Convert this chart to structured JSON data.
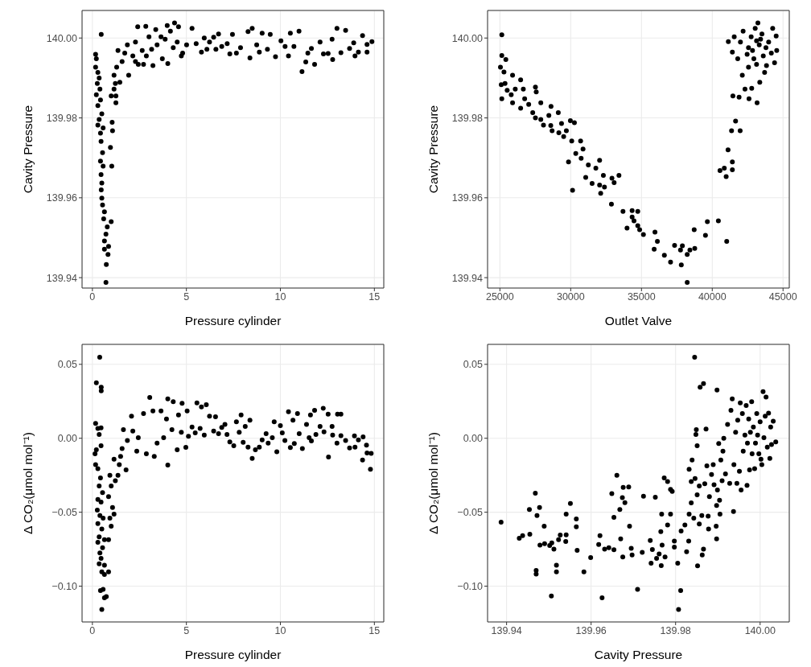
{
  "chart_data": [
    {
      "type": "scatter",
      "xlabel": "Pressure cylinder",
      "ylabel": "Cavity Pressure",
      "color": "#000000",
      "marker": "circle",
      "grid": true,
      "xlim": [
        -0.55,
        15.5
      ],
      "xticks": [
        0,
        5,
        10,
        15
      ],
      "ylim": [
        139.9374,
        140.0069
      ],
      "yticks": [
        139.94,
        139.96,
        139.98,
        {
          "value": 140,
          "label": "140.00"
        }
      ],
      "x": [
        0.17,
        0.21,
        0.17,
        0.29,
        0.36,
        0.26,
        0.4,
        0.21,
        0.43,
        0.29,
        0.5,
        0.36,
        0.29,
        0.57,
        0.43,
        0.46,
        0.54,
        0.43,
        0.57,
        0.46,
        0.5,
        0.47,
        0.5,
        0.54,
        0.64,
        0.6,
        0.79,
        0.72,
        0.64,
        0.86,
        0.64,
        0.83,
        0.74,
        0.72,
        0.47,
        1.0,
        1.03,
        0.96,
        1.05,
        1.07,
        1.0,
        1.25,
        1.25,
        1.15,
        1.22,
        1.15,
        1.46,
        1.29,
        1.58,
        1.36,
        1.72,
        1.93,
        1.86,
        2.15,
        2.29,
        2.41,
        2.44,
        2.65,
        2.84,
        3.01,
        2.87,
        3.22,
        3.37,
        3.44,
        3.72,
        3.87,
        4.01,
        3.98,
        4.15,
        4.37,
        4.51,
        4.58,
        4.73,
        4.8,
        3.15,
        2.72,
        3.65,
        4.3,
        2.29,
        5.01,
        5.3,
        5.52,
        5.8,
        5.95,
        6.09,
        6.23,
        6.45,
        6.57,
        6.71,
        6.88,
        7.17,
        7.31,
        7.45,
        7.66,
        7.88,
        8.28,
        8.38,
        8.5,
        8.74,
        8.88,
        9.03,
        9.31,
        9.46,
        9.74,
        10.03,
        10.25,
        10.43,
        10.53,
        10.72,
        10.99,
        11.15,
        11.35,
        11.46,
        11.65,
        11.82,
        12.11,
        12.29,
        12.54,
        12.78,
        12.75,
        13.01,
        13.22,
        13.47,
        13.68,
        13.9,
        13.97,
        14.15,
        14.37,
        14.61,
        14.61,
        14.87
      ],
      "values": [
        139.9959,
        139.9948,
        139.9927,
        139.9914,
        139.99,
        139.9886,
        139.9872,
        139.9858,
        139.9845,
        139.9831,
        139.981,
        139.9796,
        139.9782,
        139.9775,
        139.9762,
        139.9741,
        139.9713,
        139.9692,
        139.9679,
        139.9658,
        139.9637,
        139.962,
        139.9599,
        139.9582,
        139.9565,
        139.9547,
        139.9527,
        139.9509,
        139.9492,
        139.9478,
        139.9471,
        139.9458,
        139.9433,
        139.9388,
        140.0009,
        139.954,
        139.9679,
        139.9726,
        139.9789,
        139.9768,
        139.9855,
        139.9838,
        139.9855,
        139.9872,
        139.9886,
        139.9907,
        139.9889,
        139.9927,
        139.9941,
        139.9969,
        139.9962,
        139.9907,
        139.9983,
        139.9955,
        139.999,
        140.0028,
        139.9934,
        139.9969,
        140.0029,
        140.0003,
        139.9955,
        139.9931,
        140.0021,
        139.9983,
        139.9948,
        139.9997,
        139.9936,
        140.0031,
        140.0017,
        140.0038,
        139.999,
        140.0028,
        139.9955,
        139.9962,
        139.9972,
        139.9934,
        140.0003,
        139.9976,
        139.9941,
        139.9983,
        140.0024,
        139.9986,
        139.9965,
        140.0,
        139.9972,
        139.999,
        140.0002,
        139.9972,
        140.001,
        139.9979,
        139.9986,
        139.996,
        140.0009,
        139.9962,
        139.9976,
        140.0016,
        139.995,
        140.0024,
        139.9983,
        139.9965,
        140.0012,
        139.9972,
        140.0009,
        139.9953,
        139.9993,
        139.9979,
        139.9955,
        140.0012,
        139.9979,
        140.0017,
        139.9916,
        139.994,
        139.9962,
        139.9974,
        139.9934,
        139.999,
        139.996,
        139.9961,
        139.9946,
        139.9997,
        140.0024,
        139.9963,
        140.0019,
        139.9974,
        139.9988,
        139.9955,
        139.9965,
        140.0006,
        139.9965,
        139.9984,
        139.9991
      ]
    },
    {
      "type": "scatter",
      "xlabel": "Outlet Valve",
      "ylabel": "Cavity Pressure",
      "color": "#000000",
      "marker": "circle",
      "grid": true,
      "xlim": [
        24127,
        45441
      ],
      "xticks": [
        25000,
        30000,
        35000,
        40000,
        45000
      ],
      "ylim": [
        139.9374,
        140.0069
      ],
      "yticks": [
        139.94,
        139.96,
        139.98,
        {
          "value": 140,
          "label": "140.00"
        }
      ],
      "x": [
        25133,
        25133,
        25418,
        25038,
        25285,
        25095,
        25361,
        25133,
        25513,
        25893,
        25798,
        26083,
        25893,
        26463,
        26653,
        26463,
        26748,
        27033,
        27508,
        27565,
        27318,
        27508,
        27888,
        27888,
        28078,
        28458,
        28610,
        28591,
        28686,
        29123,
        29161,
        29351,
        29503,
        29693,
        29845,
        29978,
        30073,
        30130,
        30263,
        30358,
        30700,
        30738,
        30871,
        31061,
        31245,
        31511,
        31776,
        32042,
        32042,
        32118,
        32308,
        32384,
        32877,
        32915,
        33067,
        33409,
        33694,
        33979,
        34339,
        34339,
        34472,
        34738,
        34738,
        34871,
        35137,
        35896,
        35953,
        36124,
        36617,
        37054,
        37338,
        37756,
        37813,
        37889,
        38231,
        38231,
        38421,
        38724,
        38762,
        39521,
        39654,
        40433,
        40546,
        40850,
        40983,
        41021,
        41116,
        41363,
        41420,
        41420,
        41648,
        41970,
        41458,
        41894,
        42122,
        42312,
        42597,
        42787,
        43167,
        43357,
        41135,
        41552,
        41420,
        41800,
        41990,
        42180,
        42465,
        42560,
        42750,
        42844,
        43034,
        43129,
        43224,
        43319,
        43509,
        43604,
        43698,
        43831,
        43983,
        44173,
        44268,
        44401,
        44515,
        44553,
        42560,
        42939,
        43414,
        43793,
        43129
      ],
      "values": [
        140.0008,
        139.9956,
        139.9946,
        139.9927,
        139.9915,
        139.9883,
        139.9886,
        139.9848,
        139.9869,
        139.9907,
        139.9858,
        139.9872,
        139.9838,
        139.9895,
        139.9872,
        139.9824,
        139.9848,
        139.9834,
        139.9877,
        139.9865,
        139.9813,
        139.98,
        139.9838,
        139.9796,
        139.9782,
        139.9806,
        139.9829,
        139.9781,
        139.9768,
        139.9813,
        139.9763,
        139.9786,
        139.9753,
        139.9768,
        139.969,
        139.9793,
        139.9742,
        139.9619,
        139.9788,
        139.9711,
        139.9742,
        139.9699,
        139.9722,
        139.9651,
        139.9682,
        139.9636,
        139.9674,
        139.9694,
        139.9632,
        139.9611,
        139.9656,
        139.9627,
        139.9584,
        139.9649,
        139.9638,
        139.9656,
        139.9566,
        139.9524,
        139.9568,
        139.9552,
        139.9542,
        139.9566,
        139.953,
        139.952,
        139.9508,
        139.9471,
        139.9514,
        139.9491,
        139.9456,
        139.9439,
        139.9481,
        139.9469,
        139.9432,
        139.948,
        139.9458,
        139.9388,
        139.9469,
        139.952,
        139.9473,
        139.9506,
        139.954,
        139.9542,
        139.9668,
        139.9674,
        139.9653,
        139.9491,
        139.972,
        139.9768,
        139.967,
        139.969,
        139.9792,
        139.9768,
        139.9855,
        139.9852,
        139.9907,
        139.9872,
        139.9848,
        139.9874,
        139.9838,
        139.9889,
        139.9991,
        140.0003,
        139.9965,
        139.9948,
        139.999,
        140.0017,
        139.9959,
        139.9927,
        140.0003,
        139.9969,
        140.0024,
        139.9934,
        140.0038,
        139.9983,
        140.001,
        139.9955,
        139.9914,
        139.9931,
        139.999,
        139.9962,
        140.0024,
        139.9938,
        140.0005,
        139.9969,
        139.9976,
        139.9948,
        139.9997,
        139.9976,
        139.9993
      ]
    },
    {
      "type": "scatter",
      "xlabel": "Pressure cylinder",
      "ylabel": "Δ CO₂(μmol mol⁻¹)",
      "color": "#000000",
      "marker": "circle",
      "grid": true,
      "xlim": [
        -0.55,
        15.5
      ],
      "xticks": [
        0,
        5,
        10,
        15
      ],
      "ylim": [
        -0.1242,
        0.0635
      ],
      "yticks": [
        0.05,
        {
          "value": 0,
          "label": "0.00"
        },
        {
          "value": -0.05,
          "label": "−0.05"
        },
        {
          "value": -0.1,
          "label": "−0.10"
        }
      ],
      "x": [
        0.39,
        0.21,
        0.47,
        0.47,
        0.17,
        0.29,
        0.46,
        0.36,
        0.46,
        0.14,
        0.21,
        0.17,
        0.29,
        0.43,
        0.36,
        0.54,
        0.29,
        0.46,
        0.26,
        0.4,
        0.57,
        0.29,
        0.5,
        0.36,
        0.64,
        0.29,
        0.54,
        0.4,
        0.46,
        0.36,
        0.64,
        0.5,
        0.64,
        0.86,
        0.43,
        0.57,
        0.64,
        0.74,
        0.5,
        0.86,
        1.0,
        0.93,
        1.15,
        1.07,
        0.86,
        1.0,
        0.93,
        1.22,
        1.15,
        1.36,
        1.43,
        1.5,
        1.58,
        1.79,
        1.86,
        1.65,
        2.15,
        2.08,
        2.36,
        2.44,
        2.72,
        2.87,
        3.05,
        3.22,
        3.29,
        3.44,
        3.65,
        3.79,
        3.94,
        4.01,
        4.01,
        4.23,
        4.3,
        4.51,
        4.58,
        4.73,
        4.77,
        4.97,
        5.04,
        5.11,
        5.3,
        5.47,
        5.56,
        5.73,
        5.8,
        5.95,
        6.06,
        6.23,
        6.45,
        6.55,
        6.71,
        6.88,
        7.05,
        7.16,
        7.31,
        7.52,
        7.66,
        7.81,
        7.91,
        8.02,
        8.13,
        8.28,
        8.38,
        8.5,
        8.67,
        8.88,
        9.03,
        9.24,
        9.35,
        9.57,
        9.67,
        9.81,
        10.0,
        10.1,
        10.24,
        10.43,
        10.53,
        10.67,
        10.74,
        10.91,
        11.0,
        11.17,
        11.39,
        11.53,
        11.6,
        11.65,
        11.82,
        11.89,
        12.11,
        12.28,
        12.32,
        12.54,
        12.56,
        12.75,
        12.78,
        13.01,
        13.04,
        13.22,
        13.22,
        13.47,
        13.68,
        13.94,
        13.97,
        14.15,
        14.37,
        14.4,
        14.58,
        14.61,
        14.83,
        14.79
      ],
      "values": [
        0.0548,
        0.0375,
        0.0345,
        0.0321,
        0.01,
        0.0067,
        0.0071,
        0.0025,
        -0.0051,
        -0.0105,
        -0.0078,
        -0.0178,
        -0.0205,
        -0.0268,
        -0.0323,
        -0.0368,
        -0.0413,
        -0.0432,
        -0.0486,
        -0.0522,
        -0.054,
        -0.0577,
        -0.0613,
        -0.0667,
        -0.0686,
        -0.0704,
        -0.074,
        -0.0776,
        -0.0812,
        -0.0849,
        -0.0858,
        -0.0903,
        -0.0921,
        -0.0903,
        -0.103,
        -0.1021,
        -0.1079,
        -0.107,
        -0.1157,
        -0.0686,
        -0.0595,
        -0.054,
        -0.0513,
        -0.0468,
        -0.0395,
        -0.0323,
        -0.025,
        -0.0287,
        -0.0141,
        -0.025,
        -0.0178,
        -0.0123,
        -0.0069,
        -0.0214,
        -0.0015,
        0.0058,
        0.0049,
        0.0149,
        -0.0087,
        0.0004,
        0.0167,
        -0.0105,
        0.0276,
        0.0185,
        -0.0123,
        -0.0033,
        0.0185,
        0.0004,
        0.0131,
        0.0267,
        -0.0181,
        0.0058,
        0.0248,
        -0.0078,
        0.0158,
        0.004,
        0.0236,
        -0.0062,
        0.0185,
        0.0013,
        0.0076,
        0.0036,
        0.0239,
        0.0067,
        0.0212,
        0.0022,
        0.0227,
        0.0149,
        0.0049,
        0.0145,
        0.0031,
        0.0073,
        0.0094,
        0.0025,
        -0.0024,
        -0.0051,
        0.0112,
        0.004,
        0.0158,
        -0.0027,
        0.008,
        -0.006,
        0.0122,
        -0.0136,
        -0.0078,
        -0.006,
        -0.0011,
        0.0031,
        -0.0033,
        0.0004,
        0.0112,
        -0.0091,
        0.0085,
        0.0036,
        -0.0015,
        0.018,
        -0.0063,
        0.0122,
        -0.0036,
        0.0167,
        0.0031,
        -0.0069,
        0.0094,
        0.0004,
        0.0158,
        -0.0018,
        0.0189,
        0.0025,
        0.008,
        0.0203,
        0.0044,
        0.0163,
        -0.0127,
        0.008,
        0.0022,
        -0.0033,
        0.0163,
        0.0163,
        0.0018,
        -0.0015,
        -0.0065,
        0.0016,
        -0.006,
        -0.0011,
        -0.0147,
        0.0009,
        -0.0047,
        -0.01,
        -0.0102,
        -0.0209
      ]
    },
    {
      "type": "scatter",
      "xlabel": "Cavity Pressure",
      "ylabel": "Δ CO₂(μmol mol⁻¹)",
      "color": "#000000",
      "marker": "circle",
      "grid": true,
      "xlim": [
        139.9355,
        140.0069
      ],
      "xticks": [
        139.94,
        139.96,
        139.98,
        {
          "value": 140,
          "label": "140.00"
        }
      ],
      "ylim": [
        -0.1242,
        0.0635
      ],
      "yticks": [
        0.05,
        {
          "value": 0,
          "label": "0.00"
        },
        {
          "value": -0.05,
          "label": "−0.05"
        },
        {
          "value": -0.1,
          "label": "−0.10"
        }
      ],
      "x": [
        139.9387,
        139.943,
        139.9438,
        139.9454,
        139.9455,
        139.9468,
        139.947,
        139.947,
        139.9472,
        139.9478,
        139.9479,
        139.9489,
        139.949,
        139.9502,
        139.9506,
        139.9507,
        139.9512,
        139.9518,
        139.9518,
        139.9523,
        139.9527,
        139.954,
        139.9541,
        139.9541,
        139.9551,
        139.9565,
        139.9565,
        139.9567,
        139.9583,
        139.9599,
        139.9618,
        139.9621,
        139.9626,
        139.9632,
        139.9642,
        139.9649,
        139.9654,
        139.9654,
        139.9661,
        139.9668,
        139.967,
        139.9674,
        139.9675,
        139.9676,
        139.968,
        139.9689,
        139.9691,
        139.9695,
        139.9697,
        139.971,
        139.9721,
        139.9724,
        139.974,
        139.9742,
        139.9745,
        139.9752,
        139.9755,
        139.9761,
        139.9765,
        139.9766,
        139.9767,
        139.9768,
        139.9773,
        139.9775,
        139.9781,
        139.9781,
        139.9788,
        139.9788,
        139.9792,
        139.9797,
        139.9797,
        139.9805,
        139.9807,
        139.9812,
        139.9813,
        139.9822,
        139.9826,
        139.9831,
        139.9832,
        139.9832,
        139.9837,
        139.9837,
        139.9839,
        139.9843,
        139.9845,
        139.9846,
        139.9848,
        139.9849,
        139.9851,
        139.9851,
        139.9852,
        139.9856,
        139.9856,
        139.9858,
        139.9862,
        139.9863,
        139.9866,
        139.9866,
        139.9869,
        139.9872,
        139.9874,
        139.9877,
        139.9878,
        139.988,
        139.9885,
        139.9889,
        139.9891,
        139.9896,
        139.9897,
        139.9897,
        139.9898,
        139.9899,
        139.9902,
        139.9904,
        139.9905,
        139.9907,
        139.991,
        139.9912,
        139.9914,
        139.9918,
        139.9923,
        139.9928,
        139.9931,
        139.9934,
        139.9937,
        139.9938,
        139.9942,
        139.9945,
        139.9947,
        139.9951,
        139.9953,
        139.9955,
        139.9958,
        139.996,
        139.9964,
        139.9967,
        139.9969,
        139.997,
        139.9973,
        139.9975,
        139.9977,
        139.998,
        139.9981,
        139.9984,
        139.9987,
        139.9989,
        139.9992,
        139.9994,
        139.9997,
        140.0,
        140.0002,
        140.0004,
        140.0007,
        140.0009,
        140.0012,
        140.0014,
        140.0017,
        140.002,
        140.0023,
        140.0025,
        140.0027,
        140.0031,
        140.0037
      ],
      "values": [
        -0.0568,
        -0.0676,
        -0.0658,
        -0.0482,
        -0.0649,
        -0.0372,
        -0.0894,
        -0.0918,
        -0.0522,
        -0.0468,
        -0.0722,
        -0.0595,
        -0.0713,
        -0.0725,
        -0.1066,
        -0.0707,
        -0.0749,
        -0.0858,
        -0.0903,
        -0.0686,
        -0.0655,
        -0.0698,
        -0.0513,
        -0.0653,
        -0.0441,
        -0.0546,
        -0.0598,
        -0.0758,
        -0.0903,
        -0.0807,
        -0.0718,
        -0.0658,
        -0.1079,
        -0.0749,
        -0.074,
        -0.0374,
        -0.0535,
        -0.0754,
        -0.025,
        -0.0482,
        -0.068,
        -0.0401,
        -0.0803,
        -0.0332,
        -0.0435,
        -0.033,
        -0.0595,
        -0.0744,
        -0.0789,
        -0.1021,
        -0.0771,
        -0.0392,
        -0.0691,
        -0.0845,
        -0.0753,
        -0.0399,
        -0.0812,
        -0.0782,
        -0.0631,
        -0.0861,
        -0.0513,
        -0.0722,
        -0.0268,
        -0.0803,
        -0.0292,
        -0.0586,
        -0.0345,
        -0.0513,
        -0.0359,
        -0.0695,
        -0.0736,
        -0.0845,
        -0.1157,
        -0.103,
        -0.0627,
        -0.0586,
        -0.0767,
        -0.0695,
        -0.021,
        -0.0513,
        -0.0292,
        -0.0437,
        -0.0147,
        -0.054,
        0.0548,
        -0.0272,
        0.0025,
        0.0058,
        -0.0051,
        -0.0383,
        -0.0863,
        -0.058,
        -0.0323,
        0.0345,
        -0.0522,
        -0.0789,
        0.037,
        -0.0749,
        -0.0308,
        0.0063,
        -0.0187,
        -0.0526,
        -0.0613,
        -0.0395,
        -0.0245,
        -0.0178,
        -0.0314,
        -0.0595,
        -0.0455,
        -0.068,
        0.0326,
        -0.035,
        -0.0036,
        -0.0419,
        -0.0513,
        -0.0147,
        -0.0287,
        -0.0087,
        0.0,
        -0.0241,
        0.0094,
        -0.0305,
        0.0189,
        0.0267,
        -0.0495,
        -0.0178,
        0.004,
        -0.0305,
        0.0122,
        -0.0223,
        0.0239,
        -0.035,
        0.0167,
        -0.0087,
        0.0022,
        0.0221,
        -0.0319,
        -0.0033,
        0.0131,
        -0.0214,
        0.004,
        0.0248,
        -0.0105,
        0.0076,
        -0.0205,
        -0.0033,
        0.0167,
        0.0022,
        -0.0105,
        0.0112,
        -0.0141,
        -0.0178,
        0.0316,
        0.0004,
        0.0149,
        0.0279,
        -0.006,
        0.017,
        -0.0136,
        0.0076,
        -0.0042,
        0.0116,
        -0.0024
      ]
    }
  ]
}
